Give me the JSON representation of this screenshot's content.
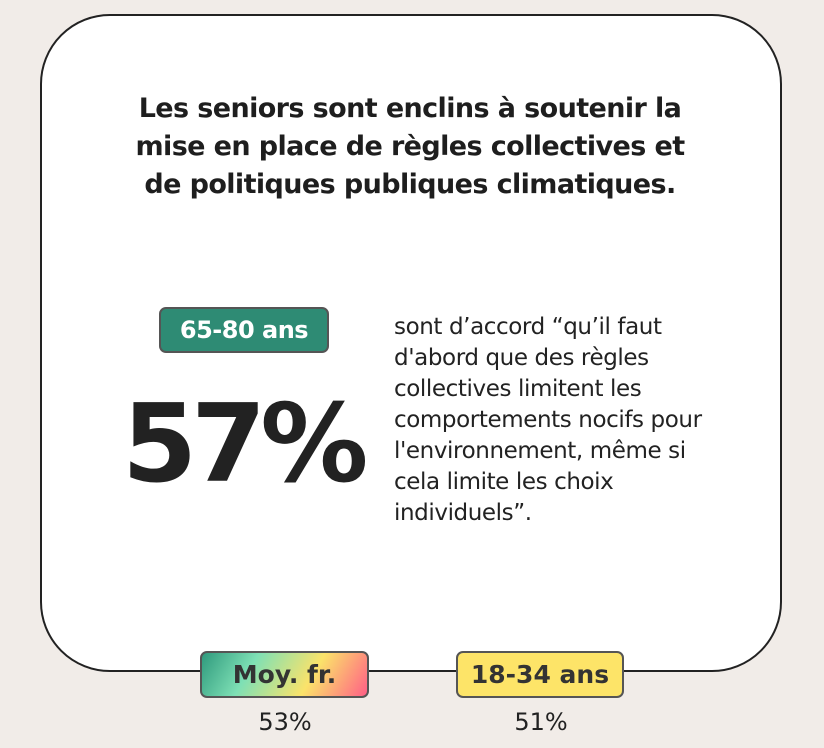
{
  "title": "Les seniors sont enclins à soutenir la mise en place de règles collectives et de politiques publiques climatiques.",
  "main": {
    "group_label": "65-80 ans",
    "percentage": "57%",
    "statement": "sont d’accord “qu’il faut d'abord que des règles collectives limitent les comportements nocifs pour l'environnement, même si cela limite les choix individuels”."
  },
  "comparisons": [
    {
      "label": "Moy. fr.",
      "value": "53%"
    },
    {
      "label": "18-34 ans",
      "value": "51%"
    }
  ],
  "colors": {
    "senior": "#2e8b74",
    "young": "#fde468",
    "background": "#f1ece8"
  }
}
